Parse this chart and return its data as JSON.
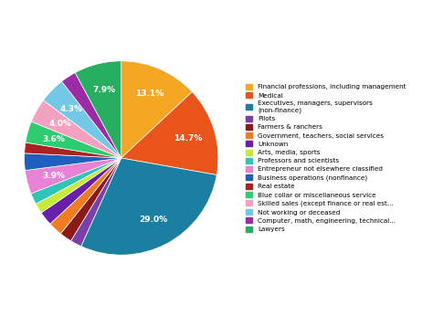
{
  "legend_labels": [
    "Financial professions, including management",
    "Medical",
    "Executives, managers, supervisors\n(non-finance)",
    "Pilots",
    "Farmers & ranchers",
    "Government, teachers, social services",
    "Unknown",
    "Arts, media, sports",
    "Professors and scientists",
    "Entrepreneur not elsewhere classified",
    "Business operations (nonfinance)",
    "Real estate",
    "Blue collar or miscellaneous service",
    "Skilled sales (except finance or real est...",
    "Not working or deceased",
    "Computer, math, engineering, technical...",
    "Lawyers"
  ],
  "values": [
    13.9,
    15.7,
    30.9,
    2.0,
    2.2,
    2.5,
    2.5,
    1.8,
    2.0,
    4.2,
    3.0,
    1.9,
    3.8,
    4.3,
    4.6,
    2.8,
    8.4
  ],
  "colors": [
    "#F5A623",
    "#E8541A",
    "#1A7FA0",
    "#7B3FAB",
    "#8B1A1A",
    "#F07C22",
    "#6A1FAB",
    "#C8E83A",
    "#2EC4B6",
    "#E882D4",
    "#1F5FBF",
    "#AA2222",
    "#2ECC71",
    "#F4A0C0",
    "#73C8E8",
    "#9B2CA5",
    "#27AE60"
  ],
  "startangle": 90,
  "autopct_threshold": 2.9,
  "pctdistance": 0.72
}
